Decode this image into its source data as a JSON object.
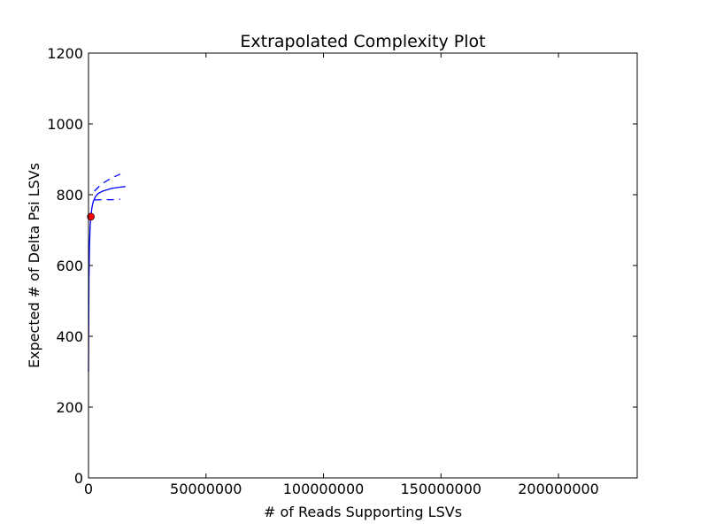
{
  "chart_data": {
    "type": "line",
    "title": "Extrapolated Complexity Plot",
    "xlabel": "# of Reads Supporting LSVs",
    "ylabel": "Expected # of Delta Psi LSVs",
    "xlim": [
      0,
      233500000
    ],
    "ylim": [
      0,
      1200
    ],
    "x_ticks": [
      0,
      50000000,
      100000000,
      150000000,
      200000000
    ],
    "x_tick_labels": [
      "0",
      "50000000",
      "100000000",
      "150000000",
      "200000000"
    ],
    "y_ticks": [
      0,
      200,
      400,
      600,
      800,
      1000,
      1200
    ],
    "y_tick_labels": [
      "0",
      "200",
      "400",
      "600",
      "800",
      "1000",
      "1200"
    ],
    "grid": false,
    "colors": {
      "line": "#0000ff",
      "point": "#ff0000",
      "axes": "#000000"
    },
    "series": [
      {
        "style": "solid",
        "x": [
          0,
          200000,
          400000,
          700000,
          1000000,
          1500000,
          2000000,
          3000000,
          4000000,
          6000000,
          8000000,
          10000000,
          13000000,
          15700000
        ],
        "y": [
          300,
          560,
          650,
          710,
          740,
          765,
          780,
          795,
          803,
          810,
          814,
          818,
          821,
          823
        ]
      },
      {
        "style": "dashed",
        "x": [
          2500000,
          4000000,
          6000000,
          8000000,
          10000000,
          13500000
        ],
        "y": [
          810,
          820,
          832,
          840,
          848,
          858
        ]
      },
      {
        "style": "dashed",
        "x": [
          2500000,
          5000000,
          8000000,
          10500000,
          13500000
        ],
        "y": [
          785,
          786,
          786,
          786,
          787
        ]
      }
    ],
    "points": [
      {
        "x": 1000000,
        "y": 738
      }
    ]
  }
}
